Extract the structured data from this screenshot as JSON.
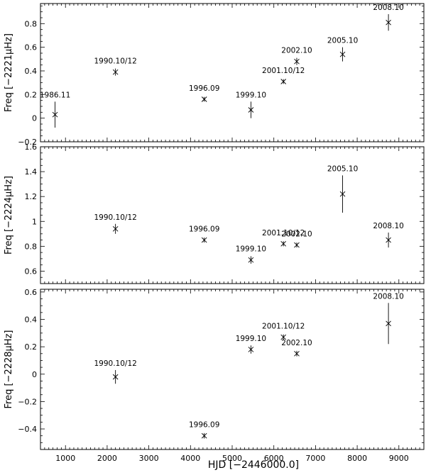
{
  "chart_data": [
    {
      "type": "scatter",
      "ylabel": "Freq [−2221μHz]",
      "xlim": [
        400,
        9600
      ],
      "ylim": [
        -0.2,
        0.97
      ],
      "yticks": [
        -0.2,
        0,
        0.2,
        0.4,
        0.6,
        0.8
      ],
      "yticklabels": [
        "−0.2",
        "0",
        "0.2",
        "0.4",
        "0.6",
        "0.8"
      ],
      "points": [
        {
          "label": "1986.11",
          "x": 750,
          "y": 0.03,
          "err": 0.11
        },
        {
          "label": "1990.10/12",
          "x": 2200,
          "y": 0.39,
          "err": 0.03
        },
        {
          "label": "1996.09",
          "x": 4330,
          "y": 0.16,
          "err": 0.02
        },
        {
          "label": "1999.10",
          "x": 5450,
          "y": 0.07,
          "err": 0.07
        },
        {
          "label": "2001.10/12",
          "x": 6230,
          "y": 0.31,
          "err": 0.02
        },
        {
          "label": "2002.10",
          "x": 6550,
          "y": 0.48,
          "err": 0.03
        },
        {
          "label": "2005.10",
          "x": 7650,
          "y": 0.54,
          "err": 0.06
        },
        {
          "label": "2008.10",
          "x": 8750,
          "y": 0.81,
          "err": 0.07
        }
      ]
    },
    {
      "type": "scatter",
      "ylabel": "Freq [−2224μHz]",
      "xlim": [
        400,
        9600
      ],
      "ylim": [
        0.5,
        1.6
      ],
      "yticks": [
        0.6,
        0.8,
        1.0,
        1.2,
        1.4,
        1.6
      ],
      "yticklabels": [
        "0.6",
        "0.8",
        "1",
        "1.2",
        "1.4",
        "1.6"
      ],
      "points": [
        {
          "label": "1990.10/12",
          "x": 2200,
          "y": 0.94,
          "err": 0.04
        },
        {
          "label": "1996.09",
          "x": 4330,
          "y": 0.85,
          "err": 0.02
        },
        {
          "label": "1999.10",
          "x": 5450,
          "y": 0.69,
          "err": 0.03
        },
        {
          "label": "2001.10/12",
          "x": 6230,
          "y": 0.82,
          "err": 0.02
        },
        {
          "label": "2002.10",
          "x": 6550,
          "y": 0.81,
          "err": 0.02
        },
        {
          "label": "2005.10",
          "x": 7650,
          "y": 1.22,
          "err": 0.15
        },
        {
          "label": "2008.10",
          "x": 8750,
          "y": 0.85,
          "err": 0.06
        }
      ]
    },
    {
      "type": "scatter",
      "ylabel": "Freq [−2228μHz]",
      "xlabel": "HJD [−2446000.0]",
      "xlim": [
        400,
        9600
      ],
      "ylim": [
        -0.55,
        0.62
      ],
      "yticks": [
        -0.4,
        -0.2,
        0,
        0.2,
        0.4,
        0.6
      ],
      "yticklabels": [
        "−0.4",
        "−0.2",
        "0",
        "0.2",
        "0.4",
        "0.6"
      ],
      "xticks": [
        1000,
        2000,
        3000,
        4000,
        5000,
        6000,
        7000,
        8000,
        9000
      ],
      "xticklabels": [
        "1000",
        "2000",
        "3000",
        "4000",
        "5000",
        "6000",
        "7000",
        "8000",
        "9000"
      ],
      "points": [
        {
          "label": "1990.10/12",
          "x": 2200,
          "y": -0.02,
          "err": 0.05
        },
        {
          "label": "1996.09",
          "x": 4330,
          "y": -0.45,
          "err": 0.02
        },
        {
          "label": "1999.10",
          "x": 5450,
          "y": 0.18,
          "err": 0.03
        },
        {
          "label": "2001.10/12",
          "x": 6230,
          "y": 0.27,
          "err": 0.02
        },
        {
          "label": "2002.10",
          "x": 6550,
          "y": 0.15,
          "err": 0.02
        },
        {
          "label": "2008.10",
          "x": 8750,
          "y": 0.37,
          "err": 0.15
        }
      ]
    }
  ]
}
